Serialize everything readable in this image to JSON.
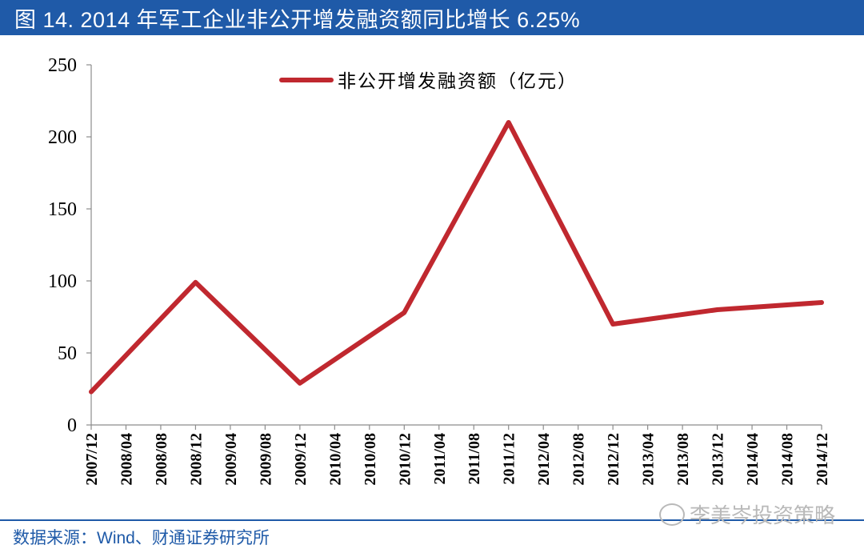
{
  "header": {
    "title": "图 14. 2014 年军工企业非公开增发融资额同比增长 6.25%"
  },
  "footer": {
    "source": "数据来源：Wind、财通证券研究所",
    "watermark": "李美岑投资策略",
    "watermark_icon": "wechat-icon"
  },
  "chart_data": {
    "type": "line",
    "categories": [
      "2007/12",
      "2008/04",
      "2008/08",
      "2008/12",
      "2009/04",
      "2009/08",
      "2009/12",
      "2010/04",
      "2010/08",
      "2010/12",
      "2011/04",
      "2011/08",
      "2011/12",
      "2012/04",
      "2012/08",
      "2012/12",
      "2013/04",
      "2013/08",
      "2013/12",
      "2014/04",
      "2014/08",
      "2014/12"
    ],
    "series": [
      {
        "name": "非公开增发融资额（亿元）",
        "color": "#c0282f",
        "values": [
          23,
          null,
          null,
          99,
          null,
          null,
          29,
          null,
          null,
          78,
          null,
          null,
          210,
          null,
          null,
          70,
          null,
          null,
          80,
          null,
          null,
          85
        ]
      }
    ],
    "ylim": [
      0,
      250
    ],
    "yticks": [
      0,
      50,
      100,
      150,
      200,
      250
    ],
    "legend_position": "top-center",
    "grid": false
  }
}
